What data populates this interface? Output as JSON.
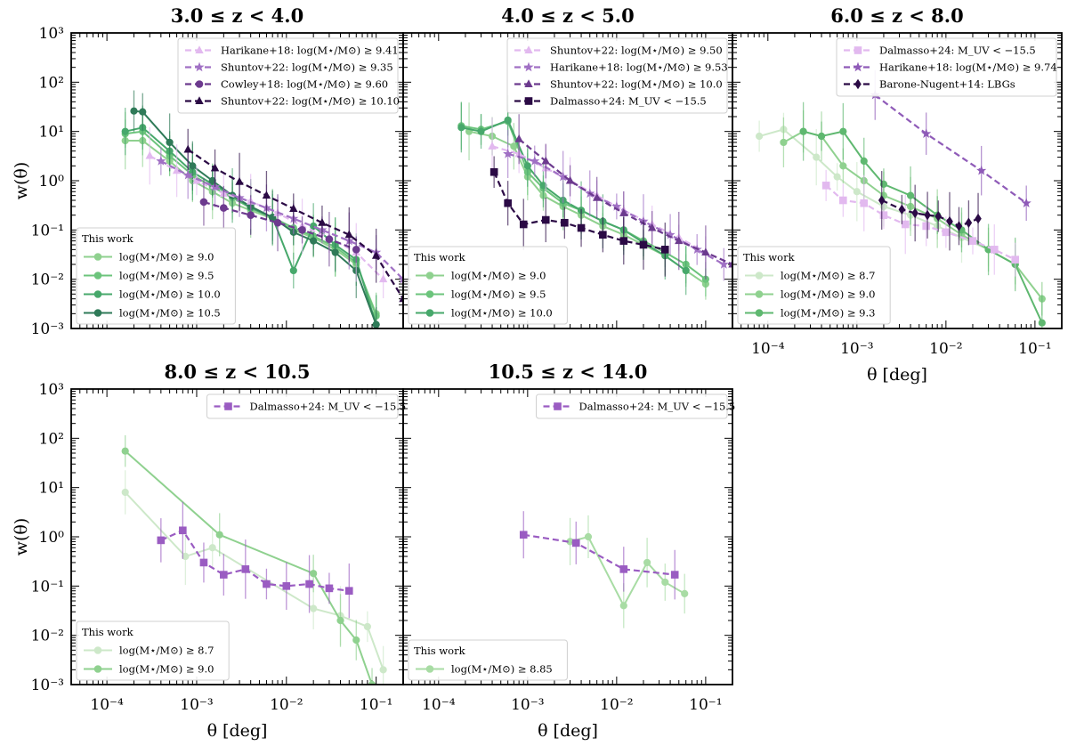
{
  "chart_data": [
    {
      "type": "line",
      "title": "3.0 ≤ z < 4.0",
      "xlabel": "",
      "ylabel": "w(θ)",
      "xscale": "log",
      "yscale": "log",
      "xlim": [
        4e-05,
        0.2
      ],
      "ylim": [
        0.001,
        1000
      ],
      "show_xticklabels": false,
      "show_yticklabels": true,
      "legend_literature": "top-right",
      "legend_thiswork": "bottom-left",
      "thiswork_title": "This work",
      "literature": [
        {
          "name": "Harikane+18: log(M⋆/M⊙) ≥ 9.41",
          "color": "#e2b9ef",
          "marker": "triangle",
          "x": [
            0.0003,
            0.0006,
            0.001,
            0.002,
            0.004,
            0.008,
            0.015,
            0.03,
            0.06,
            0.12
          ],
          "y": [
            3.2,
            1.6,
            1.0,
            0.55,
            0.38,
            0.22,
            0.12,
            0.07,
            0.035,
            0.01
          ]
        },
        {
          "name": "Shuntov+22: log(M⋆/M⊙) ≥ 9.35",
          "color": "#a070c4",
          "marker": "star",
          "x": [
            0.0004,
            0.0008,
            0.0016,
            0.003,
            0.006,
            0.012,
            0.025,
            0.05,
            0.1,
            0.2
          ],
          "y": [
            2.5,
            1.3,
            0.75,
            0.45,
            0.28,
            0.17,
            0.1,
            0.06,
            0.035,
            0.01
          ]
        },
        {
          "name": "Cowley+18: log(M⋆/M⊙) ≥ 9.60",
          "color": "#6c3a8e",
          "marker": "circle",
          "x": [
            0.0012,
            0.002,
            0.004,
            0.008,
            0.015,
            0.03,
            0.06
          ],
          "y": [
            0.37,
            0.28,
            0.2,
            0.14,
            0.1,
            0.065,
            0.04
          ]
        },
        {
          "name": "Shuntov+22: log(M⋆/M⊙) ≥ 10.10",
          "color": "#2b0a45",
          "marker": "triangle",
          "x": [
            0.0008,
            0.0016,
            0.003,
            0.006,
            0.012,
            0.025,
            0.05,
            0.1,
            0.2
          ],
          "y": [
            4.3,
            1.8,
            0.95,
            0.5,
            0.27,
            0.14,
            0.08,
            0.03,
            0.004
          ]
        }
      ],
      "this_work": [
        {
          "name": "log(M⋆/M⊙) ≥ 9.0",
          "color": "#8fd18f",
          "x": [
            0.00016,
            0.00025,
            0.0005,
            0.0009,
            0.0015,
            0.0025,
            0.004,
            0.007,
            0.012,
            0.02,
            0.035,
            0.06,
            0.1
          ],
          "y": [
            6.5,
            6.5,
            2.5,
            1.0,
            0.6,
            0.35,
            0.25,
            0.17,
            0.1,
            0.07,
            0.04,
            0.02,
            0.002
          ]
        },
        {
          "name": "log(M⋆/M⊙) ≥ 9.5",
          "color": "#6cc47c",
          "x": [
            0.00016,
            0.00025,
            0.0005,
            0.0009,
            0.0015,
            0.0025,
            0.004,
            0.007,
            0.012,
            0.02,
            0.035,
            0.06,
            0.1
          ],
          "y": [
            9.0,
            10.0,
            3.2,
            1.3,
            0.75,
            0.45,
            0.28,
            0.18,
            0.11,
            0.075,
            0.045,
            0.022,
            0.0018
          ]
        },
        {
          "name": "log(M⋆/M⊙) ≥ 10.0",
          "color": "#47a86b",
          "x": [
            0.00016,
            0.00025,
            0.0005,
            0.0009,
            0.0015,
            0.0025,
            0.004,
            0.007,
            0.012,
            0.02,
            0.035,
            0.06,
            0.1
          ],
          "y": [
            10.0,
            12.0,
            4.0,
            1.5,
            0.85,
            0.5,
            0.28,
            0.18,
            0.015,
            0.12,
            0.05,
            0.025,
            0.0012
          ]
        },
        {
          "name": "log(M⋆/M⊙) ≥ 10.5",
          "color": "#2f7a58",
          "x": [
            0.0002,
            0.00025,
            0.0005,
            0.0009,
            0.0015,
            0.0025,
            0.004,
            0.007,
            0.012,
            0.02,
            0.035,
            0.06,
            0.1
          ],
          "y": [
            26.0,
            25.0,
            6.0,
            2.0,
            1.0,
            0.5,
            0.3,
            0.18,
            0.09,
            0.06,
            0.035,
            0.015,
            0.0012
          ]
        }
      ]
    },
    {
      "type": "line",
      "title": "4.0 ≤ z < 5.0",
      "xlabel": "",
      "ylabel": "",
      "xscale": "log",
      "yscale": "log",
      "xlim": [
        4e-05,
        0.2
      ],
      "ylim": [
        0.001,
        1000
      ],
      "show_xticklabels": false,
      "show_yticklabels": false,
      "legend_literature": "top-right",
      "legend_thiswork": "bottom-left",
      "thiswork_title": "This work",
      "literature": [
        {
          "name": "Shuntov+22: log(M⋆/M⊙) ≥ 9.50",
          "color": "#e2b9ef",
          "marker": "triangle",
          "x": [
            0.0004,
            0.0008,
            0.0016,
            0.003,
            0.006,
            0.012,
            0.025,
            0.05,
            0.1,
            0.2
          ],
          "y": [
            5.0,
            3.5,
            1.8,
            1.0,
            0.5,
            0.25,
            0.13,
            0.07,
            0.035,
            0.02
          ]
        },
        {
          "name": "Harikane+18: log(M⋆/M⊙) ≥ 9.53",
          "color": "#a070c4",
          "marker": "star",
          "x": [
            0.0006,
            0.0012,
            0.0025,
            0.005,
            0.01,
            0.02,
            0.04,
            0.08,
            0.16
          ],
          "y": [
            3.5,
            2.5,
            1.2,
            0.55,
            0.3,
            0.15,
            0.08,
            0.04,
            0.02
          ]
        },
        {
          "name": "Shuntov+22: log(M⋆/M⊙) ≥ 10.0",
          "color": "#6c3a8e",
          "marker": "triangle",
          "x": [
            0.0008,
            0.0016,
            0.003,
            0.006,
            0.012,
            0.025,
            0.05,
            0.1,
            0.2
          ],
          "y": [
            7.0,
            2.5,
            1.0,
            0.45,
            0.22,
            0.11,
            0.06,
            0.035,
            0.02
          ]
        },
        {
          "name": "Dalmasso+24: M_UV < −15.5",
          "color": "#2b0a45",
          "marker": "square",
          "x": [
            0.00042,
            0.0006,
            0.0009,
            0.0016,
            0.0026,
            0.004,
            0.007,
            0.012,
            0.02,
            0.035
          ],
          "y": [
            1.5,
            0.35,
            0.13,
            0.16,
            0.14,
            0.11,
            0.08,
            0.06,
            0.05,
            0.04
          ]
        }
      ],
      "this_work": [
        {
          "name": "log(M⋆/M⊙) ≥ 9.0",
          "color": "#8fd18f",
          "x": [
            0.00022,
            0.0004,
            0.0007,
            0.001,
            0.0015,
            0.0025,
            0.004,
            0.007,
            0.012,
            0.02,
            0.035,
            0.06,
            0.1
          ],
          "y": [
            10.0,
            8.0,
            5.0,
            1.2,
            0.5,
            0.3,
            0.2,
            0.12,
            0.08,
            0.05,
            0.03,
            0.015,
            0.008
          ]
        },
        {
          "name": "log(M⋆/M⊙) ≥ 9.5",
          "color": "#6cc47c",
          "x": [
            0.00018,
            0.0003,
            0.0006,
            0.001,
            0.0015,
            0.0025,
            0.004,
            0.007,
            0.012,
            0.02,
            0.035,
            0.06,
            0.1
          ],
          "y": [
            13.0,
            11.0,
            16.0,
            1.5,
            0.7,
            0.35,
            0.25,
            0.15,
            0.1,
            0.06,
            0.035,
            0.02,
            0.01
          ]
        },
        {
          "name": "log(M⋆/M⊙) ≥ 10.0",
          "color": "#47a86b",
          "x": [
            0.00018,
            0.0003,
            0.0006,
            0.001,
            0.0015,
            0.0025,
            0.004,
            0.007,
            0.012,
            0.02,
            0.035,
            0.06
          ],
          "y": [
            12.0,
            10.0,
            17.0,
            2.0,
            0.8,
            0.4,
            0.25,
            0.15,
            0.1,
            0.055,
            0.03,
            0.015
          ]
        }
      ]
    },
    {
      "type": "line",
      "title": "6.0 ≤ z < 8.0",
      "xlabel": "θ [deg]",
      "ylabel": "",
      "xscale": "log",
      "yscale": "log",
      "xlim": [
        4e-05,
        0.2
      ],
      "ylim": [
        0.001,
        1000
      ],
      "show_xticklabels": true,
      "show_yticklabels": false,
      "legend_literature": "top-right",
      "legend_thiswork": "bottom-left",
      "thiswork_title": "This work",
      "literature": [
        {
          "name": "Dalmasso+24: M_UV < −15.5",
          "color": "#e2b9ef",
          "marker": "square",
          "x": [
            0.00045,
            0.0007,
            0.0012,
            0.002,
            0.0035,
            0.006,
            0.01,
            0.02,
            0.035,
            0.06
          ],
          "y": [
            0.8,
            0.4,
            0.35,
            0.2,
            0.13,
            0.12,
            0.09,
            0.06,
            0.04,
            0.025
          ]
        },
        {
          "name": "Harikane+18: log(M⋆/M⊙) ≥ 9.74",
          "color": "#8f5bb8",
          "marker": "star",
          "x": [
            0.0016,
            0.006,
            0.025,
            0.08
          ],
          "y": [
            55.0,
            9.0,
            1.6,
            0.35
          ]
        },
        {
          "name": "Barone-Nugent+14: LBGs",
          "color": "#2b0a45",
          "marker": "diamond",
          "x": [
            0.0019,
            0.0032,
            0.0045,
            0.0062,
            0.0082,
            0.011,
            0.014,
            0.018,
            0.023
          ],
          "y": [
            0.4,
            0.26,
            0.22,
            0.2,
            0.19,
            0.15,
            0.12,
            0.14,
            0.17
          ]
        }
      ],
      "this_work": [
        {
          "name": "log(M⋆/M⊙) ≥ 8.7",
          "color": "#cde8c9",
          "x": [
            8e-05,
            0.00015,
            0.00035,
            0.0006,
            0.001,
            0.002,
            0.004,
            0.008,
            0.015,
            0.03,
            0.06,
            0.12
          ],
          "y": [
            8.0,
            11.0,
            3.0,
            1.2,
            0.6,
            0.3,
            0.2,
            0.12,
            0.07,
            0.04,
            0.02,
            0.004
          ]
        },
        {
          "name": "log(M⋆/M⊙) ≥ 9.0",
          "color": "#8fd18f",
          "x": [
            0.00015,
            0.00025,
            0.0004,
            0.0007,
            0.0012,
            0.002,
            0.004,
            0.008,
            0.015,
            0.03,
            0.06,
            0.12
          ],
          "y": [
            6.0,
            10.0,
            8.0,
            2.0,
            1.0,
            0.5,
            0.3,
            0.17,
            0.08,
            0.04,
            0.02,
            0.004
          ]
        },
        {
          "name": "log(M⋆/M⊙) ≥ 9.3",
          "color": "#5fb870",
          "x": [
            0.00025,
            0.0004,
            0.0007,
            0.0012,
            0.002,
            0.004,
            0.008,
            0.015,
            0.03,
            0.06,
            0.12
          ],
          "y": [
            10.0,
            8.0,
            10.0,
            2.5,
            0.85,
            0.5,
            0.2,
            0.1,
            0.04,
            0.02,
            0.0013
          ]
        }
      ]
    },
    {
      "type": "line",
      "title": "8.0 ≤ z < 10.5",
      "xlabel": "θ [deg]",
      "ylabel": "w(θ)",
      "xscale": "log",
      "yscale": "log",
      "xlim": [
        4e-05,
        0.2
      ],
      "ylim": [
        0.001,
        1000
      ],
      "show_xticklabels": true,
      "show_yticklabels": true,
      "legend_literature": "top-right",
      "legend_thiswork": "bottom-left",
      "thiswork_title": "This work",
      "literature": [
        {
          "name": "Dalmasso+24: M_UV < −15.5",
          "color": "#9a5cc2",
          "marker": "square",
          "x": [
            0.0004,
            0.0007,
            0.0012,
            0.002,
            0.0035,
            0.006,
            0.01,
            0.018,
            0.03,
            0.05
          ],
          "y": [
            0.85,
            1.35,
            0.3,
            0.17,
            0.22,
            0.11,
            0.1,
            0.11,
            0.09,
            0.08
          ]
        }
      ],
      "this_work": [
        {
          "name": "log(M⋆/M⊙) ≥ 8.7",
          "color": "#cde8c9",
          "x": [
            0.00016,
            0.00075,
            0.0015,
            0.02,
            0.04,
            0.08,
            0.12
          ],
          "y": [
            8.0,
            0.4,
            0.6,
            0.035,
            0.025,
            0.015,
            0.002
          ]
        },
        {
          "name": "log(M⋆/M⊙) ≥ 9.0",
          "color": "#8fd18f",
          "x": [
            0.00016,
            0.0018,
            0.02,
            0.04,
            0.06,
            0.09
          ],
          "y": [
            55.0,
            1.1,
            0.18,
            0.02,
            0.008,
            0.001
          ]
        }
      ]
    },
    {
      "type": "line",
      "title": "10.5 ≤ z < 14.0",
      "xlabel": "θ [deg]",
      "ylabel": "",
      "xscale": "log",
      "yscale": "log",
      "xlim": [
        4e-05,
        0.2
      ],
      "ylim": [
        0.001,
        1000
      ],
      "show_xticklabels": true,
      "show_yticklabels": false,
      "legend_literature": "top-right",
      "legend_thiswork": "bottom-left",
      "thiswork_title": "This work",
      "literature": [
        {
          "name": "Dalmasso+24: M_UV < −15.5",
          "color": "#9a5cc2",
          "marker": "square",
          "x": [
            0.0009,
            0.0035,
            0.012,
            0.045
          ],
          "y": [
            1.1,
            0.75,
            0.22,
            0.17
          ]
        }
      ],
      "this_work": [
        {
          "name": "log(M⋆/M⊙) ≥ 8.85",
          "color": "#a8dca4",
          "x": [
            0.003,
            0.0048,
            0.012,
            0.022,
            0.035,
            0.058
          ],
          "y": [
            0.8,
            1.0,
            0.04,
            0.3,
            0.12,
            0.07
          ]
        }
      ]
    }
  ]
}
